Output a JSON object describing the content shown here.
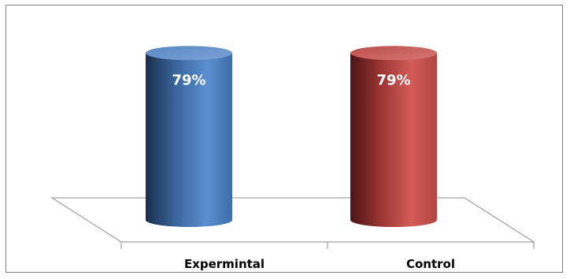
{
  "chart_data": {
    "type": "bar",
    "style": "3d-cylinder",
    "categories": [
      "Expermintal",
      "Control"
    ],
    "values": [
      79,
      79
    ],
    "value_labels": [
      "79%",
      "79%"
    ],
    "colors": [
      "#4f81bd",
      "#c0504d"
    ],
    "ylim": [
      0,
      100
    ],
    "grid": false,
    "legend": "none"
  }
}
